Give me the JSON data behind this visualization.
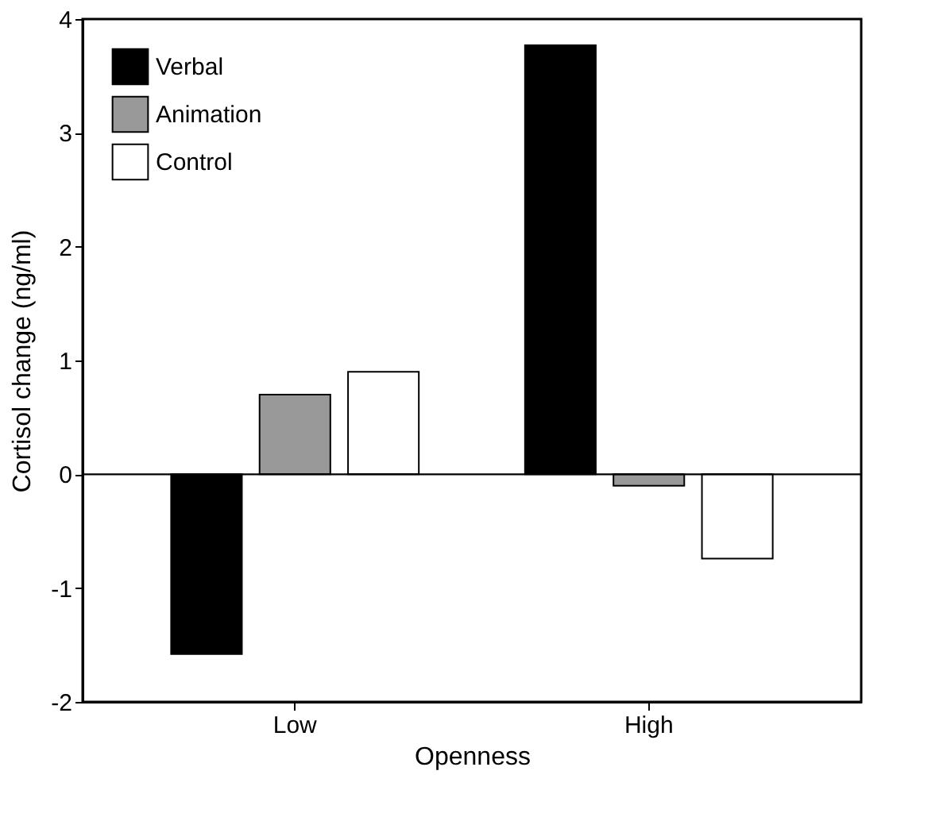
{
  "chart_data": {
    "type": "bar",
    "xlabel": "Openness",
    "ylabel": "Cortisol change (ng/ml)",
    "categories": [
      "Low",
      "High"
    ],
    "series": [
      {
        "name": "Verbal",
        "color": "#000000",
        "values": [
          -1.58,
          3.77
        ]
      },
      {
        "name": "Animation",
        "color": "#999999",
        "values": [
          0.7,
          -0.1
        ]
      },
      {
        "name": "Control",
        "color": "#ffffff",
        "values": [
          0.9,
          -0.74
        ]
      }
    ],
    "ylim": [
      -2,
      4
    ],
    "yticks": [
      -2,
      -1,
      0,
      1,
      2,
      3,
      4
    ],
    "grid": false,
    "legend": "top left",
    "ref_lines": [
      {
        "axis": "y",
        "value": 0,
        "color": "#000000"
      }
    ]
  }
}
